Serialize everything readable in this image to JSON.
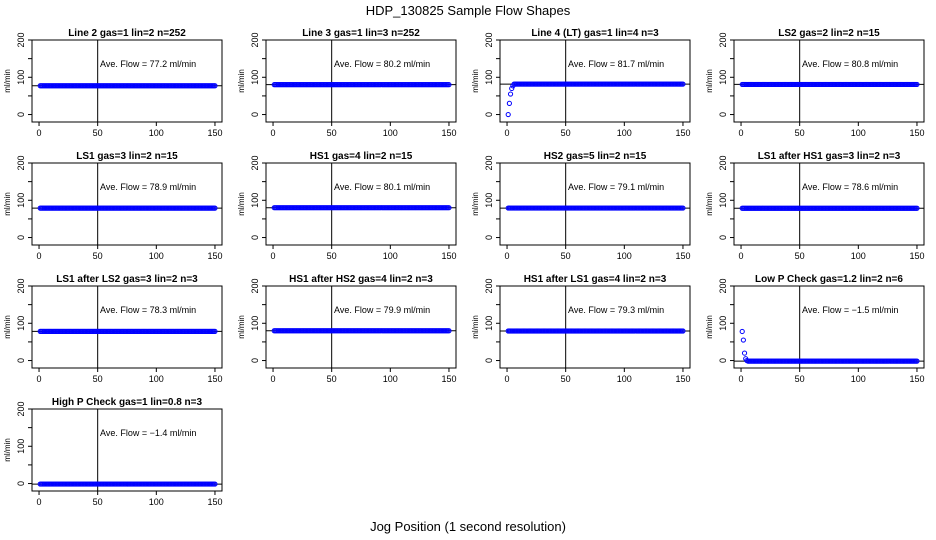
{
  "title": "HDP_130825  Sample Flow Shapes",
  "xlabel": "Jog Position (1 second resolution)",
  "ylabel": "ml/min",
  "marker_color": "#0000ff",
  "chart_data": [
    {
      "type": "scatter",
      "title": "Line 2 gas=1 lin=2 n=252",
      "annotation": "Ave. Flow =  77.2  ml/min",
      "xlim": [
        0,
        150
      ],
      "ylim": [
        -20,
        200
      ],
      "vline": 50,
      "hline": 77.2,
      "flow": 77.2,
      "shape": "flat"
    },
    {
      "type": "scatter",
      "title": "Line 3 gas=1 lin=3 n=252",
      "annotation": "Ave. Flow =  80.2  ml/min",
      "xlim": [
        0,
        150
      ],
      "ylim": [
        -20,
        200
      ],
      "vline": 50,
      "hline": 80.2,
      "flow": 80.2,
      "shape": "flat"
    },
    {
      "type": "scatter",
      "title": "Line 4 (LT) gas=1 lin=4 n=3",
      "annotation": "Ave. Flow =  81.7  ml/min",
      "xlim": [
        0,
        150
      ],
      "ylim": [
        -20,
        200
      ],
      "vline": 50,
      "hline": 81.7,
      "flow": 81.7,
      "shape": "rise",
      "start_points": [
        [
          1,
          0
        ],
        [
          2,
          30
        ],
        [
          3,
          55
        ],
        [
          4,
          70
        ],
        [
          5,
          77
        ]
      ]
    },
    {
      "type": "scatter",
      "title": "LS2 gas=2 lin=2 n=15",
      "annotation": "Ave. Flow =  80.8  ml/min",
      "xlim": [
        0,
        150
      ],
      "ylim": [
        -20,
        200
      ],
      "vline": 50,
      "hline": 80.8,
      "flow": 80.8,
      "shape": "flat"
    },
    {
      "type": "scatter",
      "title": "LS1 gas=3 lin=2 n=15",
      "annotation": "Ave. Flow =  78.9  ml/min",
      "xlim": [
        0,
        150
      ],
      "ylim": [
        -20,
        200
      ],
      "vline": 50,
      "hline": 78.9,
      "flow": 78.9,
      "shape": "flat"
    },
    {
      "type": "scatter",
      "title": "HS1 gas=4 lin=2 n=15",
      "annotation": "Ave. Flow =  80.1  ml/min",
      "xlim": [
        0,
        150
      ],
      "ylim": [
        -20,
        200
      ],
      "vline": 50,
      "hline": 80.1,
      "flow": 80.1,
      "shape": "flat"
    },
    {
      "type": "scatter",
      "title": "HS2 gas=5 lin=2 n=15",
      "annotation": "Ave. Flow =  79.1  ml/min",
      "xlim": [
        0,
        150
      ],
      "ylim": [
        -20,
        200
      ],
      "vline": 50,
      "hline": 79.1,
      "flow": 79.1,
      "shape": "flat"
    },
    {
      "type": "scatter",
      "title": "LS1 after HS1 gas=3 lin=2 n=3",
      "annotation": "Ave. Flow =  78.6  ml/min",
      "xlim": [
        0,
        150
      ],
      "ylim": [
        -20,
        200
      ],
      "vline": 50,
      "hline": 78.6,
      "flow": 78.6,
      "shape": "flat"
    },
    {
      "type": "scatter",
      "title": "LS1 after LS2 gas=3 lin=2 n=3",
      "annotation": "Ave. Flow =  78.3  ml/min",
      "xlim": [
        0,
        150
      ],
      "ylim": [
        -20,
        200
      ],
      "vline": 50,
      "hline": 78.3,
      "flow": 78.3,
      "shape": "flat"
    },
    {
      "type": "scatter",
      "title": "HS1 after HS2 gas=4 lin=2 n=3",
      "annotation": "Ave. Flow =  79.9  ml/min",
      "xlim": [
        0,
        150
      ],
      "ylim": [
        -20,
        200
      ],
      "vline": 50,
      "hline": 79.9,
      "flow": 79.9,
      "shape": "flat"
    },
    {
      "type": "scatter",
      "title": "HS1 after LS1 gas=4 lin=2 n=3",
      "annotation": "Ave. Flow =  79.3  ml/min",
      "xlim": [
        0,
        150
      ],
      "ylim": [
        -20,
        200
      ],
      "vline": 50,
      "hline": 79.3,
      "flow": 79.3,
      "shape": "flat"
    },
    {
      "type": "scatter",
      "title": "Low P Check gas=1.2 lin=2 n=6",
      "annotation": "Ave. Flow =  −1.5  ml/min",
      "xlim": [
        0,
        150
      ],
      "ylim": [
        -20,
        200
      ],
      "vline": 50,
      "hline": -1.5,
      "flow": -1.5,
      "shape": "drop",
      "start_points": [
        [
          1,
          78
        ],
        [
          2,
          55
        ],
        [
          3,
          20
        ],
        [
          4,
          5
        ],
        [
          5,
          0
        ]
      ]
    },
    {
      "type": "scatter",
      "title": "High P Check gas=1 lin=0.8 n=3",
      "annotation": "Ave. Flow =  −1.4  ml/min",
      "xlim": [
        0,
        150
      ],
      "ylim": [
        -20,
        200
      ],
      "vline": 50,
      "hline": -1.4,
      "flow": -1.4,
      "shape": "flat"
    }
  ]
}
